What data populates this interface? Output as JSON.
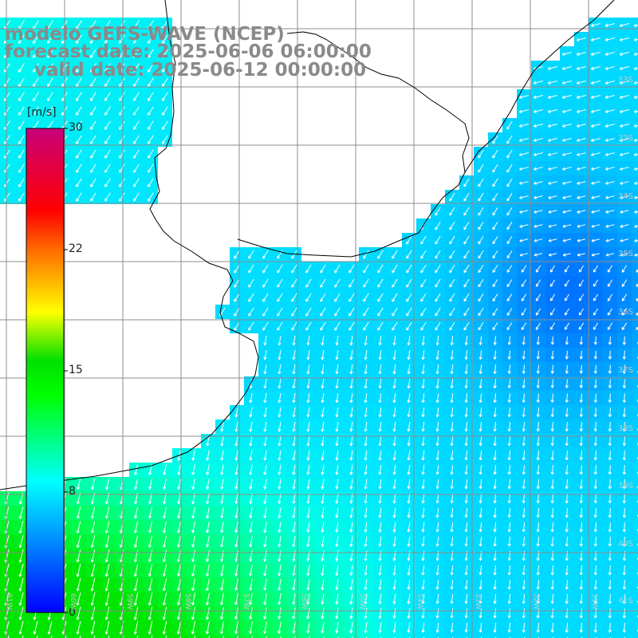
{
  "title": {
    "line1": "modelo GEFS-WAVE (NCEP)",
    "line2": "forecast date: 2025-06-06 06:00:00",
    "line3": "valid date: 2025-06-12 00:00:00"
  },
  "colorbar": {
    "unit": "[m/s]",
    "ticks": [
      {
        "label": "30",
        "value": 30
      },
      {
        "label": "22",
        "value": 22
      },
      {
        "label": "15",
        "value": 15
      },
      {
        "label": "8",
        "value": 8
      },
      {
        "label": "0",
        "value": 0
      }
    ],
    "colors": [
      "#0000ff",
      "#00ffff",
      "#00ff00",
      "#ffff00",
      "#ff0000",
      "#c8007a"
    ]
  },
  "lat_labels": [
    "33S",
    "34S",
    "35S",
    "36S",
    "37S",
    "38S",
    "39S",
    "40S",
    "41S"
  ],
  "lon_labels": [
    "61W",
    "60W",
    "59W",
    "58W",
    "57W",
    "56W",
    "55W",
    "54W",
    "53W",
    "52W",
    "51W"
  ],
  "colors": {
    "land": "#ffffff",
    "coastline": "#000000",
    "grid": "#888888",
    "arrows": "#ffffff"
  }
}
